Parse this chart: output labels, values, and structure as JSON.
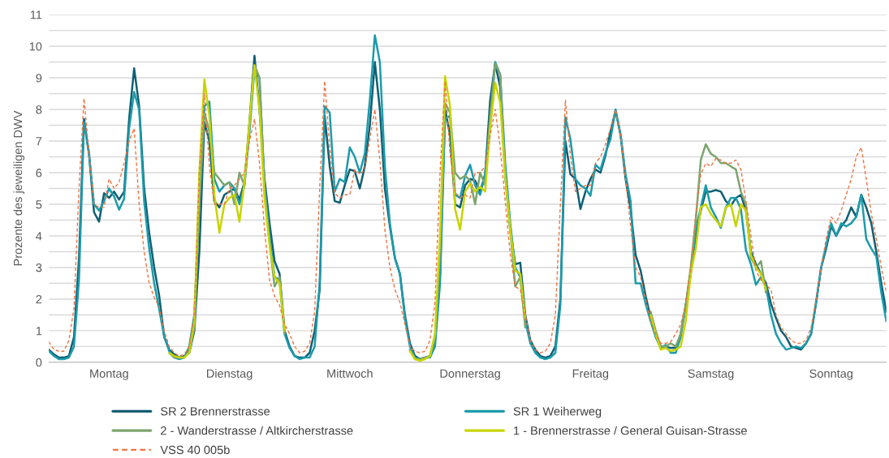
{
  "chart_data": {
    "type": "line",
    "ylabel": "Prozente des jeweiligen DWV",
    "categories": [
      null,
      null,
      null,
      null,
      null,
      null,
      null,
      null,
      null,
      null,
      null,
      null,
      "Montag",
      null,
      null,
      null,
      null,
      null,
      null,
      null,
      null,
      null,
      null,
      null,
      null,
      null,
      null,
      null,
      null,
      null,
      null,
      null,
      null,
      null,
      null,
      null,
      "Dienstag",
      null,
      null,
      null,
      null,
      null,
      null,
      null,
      null,
      null,
      null,
      null,
      null,
      null,
      null,
      null,
      null,
      null,
      null,
      null,
      null,
      null,
      null,
      null,
      "Mittwoch",
      null,
      null,
      null,
      null,
      null,
      null,
      null,
      null,
      null,
      null,
      null,
      null,
      null,
      null,
      null,
      null,
      null,
      null,
      null,
      null,
      null,
      null,
      null,
      "Donnerstag",
      null,
      null,
      null,
      null,
      null,
      null,
      null,
      null,
      null,
      null,
      null,
      null,
      null,
      null,
      null,
      null,
      null,
      null,
      null,
      null,
      null,
      null,
      null,
      "Freitag",
      null,
      null,
      null,
      null,
      null,
      null,
      null,
      null,
      null,
      null,
      null,
      null,
      null,
      null,
      null,
      null,
      null,
      null,
      null,
      null,
      null,
      null,
      null,
      "Samstag",
      null,
      null,
      null,
      null,
      null,
      null,
      null,
      null,
      null,
      null,
      null,
      null,
      null,
      null,
      null,
      null,
      null,
      null,
      null,
      null,
      null,
      null,
      null,
      "Sonntag",
      null,
      null,
      null,
      null,
      null,
      null,
      null,
      null,
      null,
      null,
      null
    ],
    "ylim": [
      0,
      11
    ],
    "yticks": [
      0,
      {
        "value": 0.5,
        "label": null
      },
      1,
      {
        "value": 1.5,
        "label": null
      },
      2,
      {
        "value": 2.5,
        "label": null
      },
      3,
      {
        "value": 3.5,
        "label": null
      },
      4,
      {
        "value": 4.5,
        "label": null
      },
      5,
      {
        "value": 5.5,
        "label": null
      },
      6,
      {
        "value": 6.5,
        "label": null
      },
      7,
      {
        "value": 7.5,
        "label": null
      },
      8,
      {
        "value": 8.5,
        "label": null
      },
      9,
      {
        "value": 9.5,
        "label": null
      },
      10,
      {
        "value": 10.5,
        "label": null
      },
      11
    ],
    "grid": "y",
    "legend": "bottom",
    "marker": "none",
    "series": [
      {
        "name": "SR 2 Brennerstrasse",
        "color": "#0f5f73",
        "line_style": "solid",
        "values": [
          0.4,
          0.25,
          0.15,
          0.15,
          0.2,
          0.8,
          3.3,
          7.7,
          6.6,
          4.75,
          4.45,
          5.35,
          5.2,
          5.4,
          5.15,
          5.4,
          7.7,
          9.3,
          8.1,
          5.5,
          4.1,
          3.0,
          2.1,
          0.8,
          0.4,
          0.25,
          0.15,
          0.2,
          0.3,
          1.0,
          3.5,
          7.6,
          7.0,
          5.1,
          4.9,
          5.3,
          5.4,
          5.5,
          5.15,
          5.7,
          7.6,
          9.7,
          8.0,
          5.8,
          4.4,
          3.2,
          2.8,
          1.0,
          0.5,
          0.2,
          0.15,
          0.15,
          0.3,
          1.0,
          2.3,
          7.8,
          6.2,
          5.1,
          5.05,
          5.6,
          6.1,
          6.05,
          5.5,
          6.2,
          7.5,
          9.5,
          8.0,
          5.5,
          4.3,
          3.3,
          2.8,
          1.5,
          0.6,
          0.2,
          0.1,
          0.15,
          0.2,
          0.7,
          2.8,
          8.0,
          7.2,
          5.0,
          4.9,
          5.6,
          5.8,
          5.75,
          5.4,
          5.95,
          8.3,
          9.45,
          8.7,
          5.95,
          4.2,
          3.1,
          3.15,
          1.5,
          0.7,
          0.4,
          0.2,
          0.15,
          0.2,
          0.5,
          2.0,
          7.0,
          5.95,
          5.8,
          4.85,
          5.4,
          5.8,
          6.1,
          6.0,
          6.55,
          7.3,
          7.96,
          7.2,
          5.8,
          4.85,
          3.4,
          2.9,
          2.1,
          1.4,
          0.9,
          0.5,
          0.5,
          0.45,
          0.45,
          0.9,
          1.8,
          2.8,
          4.0,
          4.8,
          5.4,
          5.4,
          5.45,
          5.4,
          5.1,
          4.95,
          5.2,
          5.3,
          4.8,
          3.5,
          3.1,
          2.8,
          2.5,
          1.85,
          1.4,
          1.0,
          0.8,
          0.5,
          0.45,
          0.4,
          0.6,
          0.9,
          1.9,
          3.0,
          3.6,
          4.3,
          4.0,
          4.3,
          4.5,
          4.9,
          4.6,
          5.3,
          4.9,
          4.4,
          3.5,
          2.5,
          1.6
        ]
      },
      {
        "name": "SR 1 Weiherweg",
        "color": "#1c9bab",
        "line_style": "solid",
        "values": [
          0.35,
          0.2,
          0.1,
          0.1,
          0.15,
          0.5,
          2.6,
          7.6,
          6.6,
          5.0,
          4.8,
          5.1,
          5.5,
          5.25,
          4.83,
          5.17,
          7.4,
          8.55,
          8.0,
          5.1,
          3.6,
          2.5,
          1.67,
          0.82,
          0.35,
          0.15,
          0.1,
          0.15,
          0.5,
          1.5,
          5.0,
          8.1,
          8.25,
          5.8,
          5.4,
          5.6,
          5.7,
          5.5,
          5.0,
          5.6,
          7.3,
          9.3,
          9.0,
          5.6,
          4.0,
          2.7,
          2.6,
          0.9,
          0.45,
          0.2,
          0.1,
          0.15,
          0.15,
          0.5,
          2.5,
          8.1,
          7.9,
          5.4,
          5.8,
          5.7,
          6.8,
          6.5,
          6.0,
          6.6,
          8.3,
          10.35,
          9.5,
          6.2,
          4.4,
          3.3,
          2.8,
          1.4,
          0.5,
          0.15,
          0.1,
          0.15,
          0.15,
          0.5,
          2.5,
          7.7,
          7.8,
          5.3,
          5.2,
          5.9,
          6.25,
          5.6,
          5.3,
          5.95,
          7.7,
          9.5,
          9.1,
          6.3,
          4.4,
          3.0,
          2.7,
          1.3,
          0.6,
          0.3,
          0.15,
          0.1,
          0.15,
          0.3,
          1.8,
          7.75,
          7.06,
          5.8,
          5.6,
          5.5,
          5.27,
          6.25,
          6.1,
          6.63,
          7.06,
          8.0,
          7.2,
          5.95,
          5.1,
          2.5,
          2.5,
          1.85,
          1.3,
          0.8,
          0.45,
          0.55,
          0.3,
          0.3,
          0.8,
          1.8,
          2.9,
          4.2,
          4.9,
          5.6,
          4.9,
          4.6,
          4.25,
          4.9,
          5.2,
          5.2,
          4.85,
          3.55,
          3.1,
          2.45,
          2.7,
          2.4,
          1.5,
          0.9,
          0.6,
          0.4,
          0.45,
          0.5,
          0.45,
          0.6,
          0.9,
          1.9,
          3.0,
          3.7,
          4.4,
          4.0,
          4.4,
          4.3,
          4.4,
          4.6,
          5.3,
          3.9,
          3.6,
          3.35,
          2.2,
          1.3
        ]
      },
      {
        "name": "2 - Wanderstrasse / Altkircherstrasse",
        "color": "#7da56f",
        "line_style": "solid",
        "values": [
          null,
          null,
          null,
          null,
          null,
          null,
          null,
          null,
          null,
          null,
          null,
          null,
          null,
          null,
          null,
          null,
          null,
          null,
          null,
          null,
          null,
          null,
          null,
          null,
          0.3,
          0.15,
          0.15,
          0.15,
          0.35,
          1.1,
          5.0,
          7.9,
          7.3,
          6.0,
          5.8,
          5.6,
          5.7,
          5.0,
          6.0,
          5.6,
          7.5,
          9.4,
          9.0,
          5.5,
          3.8,
          2.4,
          2.7,
          0.9,
          null,
          null,
          null,
          null,
          null,
          null,
          null,
          null,
          null,
          null,
          null,
          null,
          null,
          null,
          null,
          null,
          null,
          null,
          null,
          null,
          null,
          null,
          null,
          null,
          0.4,
          0.1,
          0.1,
          0.15,
          0.2,
          0.8,
          3.5,
          8.2,
          7.9,
          6.0,
          5.8,
          5.9,
          5.75,
          5.0,
          6.0,
          5.6,
          7.8,
          9.45,
          9.1,
          5.9,
          4.2,
          2.4,
          2.7,
          1.1,
          null,
          null,
          null,
          null,
          null,
          null,
          null,
          null,
          null,
          null,
          null,
          null,
          null,
          null,
          null,
          null,
          null,
          null,
          null,
          null,
          null,
          null,
          null,
          null,
          1.6,
          1.0,
          0.5,
          0.5,
          0.6,
          0.5,
          0.9,
          1.8,
          3.0,
          4.5,
          6.4,
          6.9,
          6.6,
          6.5,
          6.3,
          6.3,
          6.2,
          6.1,
          5.4,
          5.0,
          3.3,
          3.0,
          3.2,
          2.2,
          null,
          null,
          null,
          null,
          null,
          null,
          null,
          null,
          null,
          null,
          null,
          null,
          null,
          null,
          null,
          null,
          null,
          null,
          null,
          null,
          null,
          null,
          null,
          null
        ]
      },
      {
        "name": "1 - Brennerstrasse / General Guisan-Strasse",
        "color": "#c8d400",
        "line_style": "solid",
        "values": [
          null,
          null,
          null,
          null,
          null,
          null,
          null,
          null,
          null,
          null,
          null,
          null,
          null,
          null,
          null,
          null,
          null,
          null,
          null,
          null,
          null,
          null,
          null,
          null,
          0.3,
          0.2,
          0.15,
          0.15,
          0.3,
          1.3,
          6.0,
          8.95,
          7.8,
          5.3,
          4.1,
          5.0,
          5.2,
          5.3,
          4.45,
          5.7,
          7.6,
          9.4,
          8.0,
          5.2,
          3.7,
          2.7,
          2.5,
          1.0,
          null,
          null,
          null,
          null,
          null,
          null,
          null,
          null,
          null,
          null,
          null,
          null,
          null,
          null,
          null,
          null,
          null,
          null,
          null,
          null,
          null,
          null,
          null,
          null,
          0.35,
          0.1,
          0.05,
          0.1,
          0.2,
          0.9,
          4.0,
          9.05,
          8.1,
          4.85,
          4.2,
          5.4,
          5.65,
          5.4,
          5.55,
          5.4,
          7.4,
          8.85,
          8.2,
          5.9,
          4.2,
          2.9,
          2.8,
          1.4,
          null,
          null,
          null,
          null,
          null,
          null,
          null,
          null,
          null,
          null,
          null,
          null,
          null,
          null,
          null,
          null,
          null,
          null,
          null,
          null,
          null,
          null,
          null,
          null,
          1.5,
          0.9,
          0.4,
          0.45,
          0.35,
          0.4,
          0.5,
          1.3,
          2.8,
          3.6,
          4.9,
          5.0,
          4.7,
          4.5,
          4.3,
          4.9,
          5.0,
          4.3,
          5.0,
          4.8,
          3.4,
          3.0,
          2.8,
          2.3,
          null,
          null,
          null,
          null,
          null,
          null,
          null,
          null,
          null,
          null,
          null,
          null,
          null,
          null,
          null,
          null,
          null,
          null,
          null,
          null,
          null,
          null,
          null,
          null
        ]
      },
      {
        "name": "VSS 40 005b",
        "color": "#ef7443",
        "line_style": "dashed",
        "values": [
          0.65,
          0.4,
          0.35,
          0.35,
          0.7,
          1.7,
          5.5,
          8.35,
          6.6,
          5.0,
          4.9,
          4.9,
          5.8,
          5.5,
          5.7,
          6.3,
          7.0,
          7.4,
          5.0,
          3.5,
          2.5,
          2.05,
          1.75,
          1.0,
          0.5,
          0.3,
          0.2,
          0.25,
          0.5,
          1.5,
          6.0,
          8.5,
          6.2,
          5.0,
          5.0,
          5.0,
          5.5,
          5.6,
          5.8,
          6.0,
          7.0,
          7.7,
          6.3,
          4.2,
          2.6,
          2.1,
          1.8,
          1.2,
          0.9,
          0.5,
          0.3,
          0.35,
          0.6,
          1.6,
          5.5,
          8.9,
          6.8,
          5.35,
          5.2,
          5.3,
          5.3,
          6.1,
          5.95,
          6.1,
          7.06,
          8.0,
          6.4,
          4.2,
          3.0,
          2.3,
          1.9,
          1.2,
          0.5,
          0.35,
          0.3,
          0.35,
          0.7,
          1.9,
          6.0,
          8.9,
          6.6,
          5.4,
          5.2,
          5.3,
          5.2,
          6.0,
          6.0,
          6.2,
          7.2,
          8.0,
          6.8,
          5.1,
          3.4,
          2.4,
          2.3,
          1.5,
          0.7,
          0.4,
          0.3,
          0.35,
          0.6,
          1.5,
          5.0,
          8.3,
          6.5,
          5.4,
          5.5,
          5.6,
          5.6,
          6.3,
          6.5,
          6.9,
          7.4,
          8.0,
          7.2,
          5.8,
          4.3,
          3.0,
          2.7,
          2.0,
          1.3,
          0.9,
          0.6,
          0.6,
          0.65,
          0.9,
          1.2,
          1.85,
          3.0,
          4.7,
          5.95,
          6.3,
          6.2,
          6.45,
          6.4,
          6.3,
          6.3,
          6.4,
          6.1,
          5.1,
          4.0,
          2.9,
          2.6,
          2.45,
          2.3,
          1.5,
          1.1,
          0.9,
          0.7,
          0.6,
          0.6,
          0.7,
          1.1,
          2.0,
          3.0,
          3.9,
          4.6,
          4.4,
          4.8,
          5.3,
          5.8,
          6.5,
          6.8,
          5.8,
          4.7,
          3.9,
          3.0,
          2.2
        ]
      }
    ]
  }
}
